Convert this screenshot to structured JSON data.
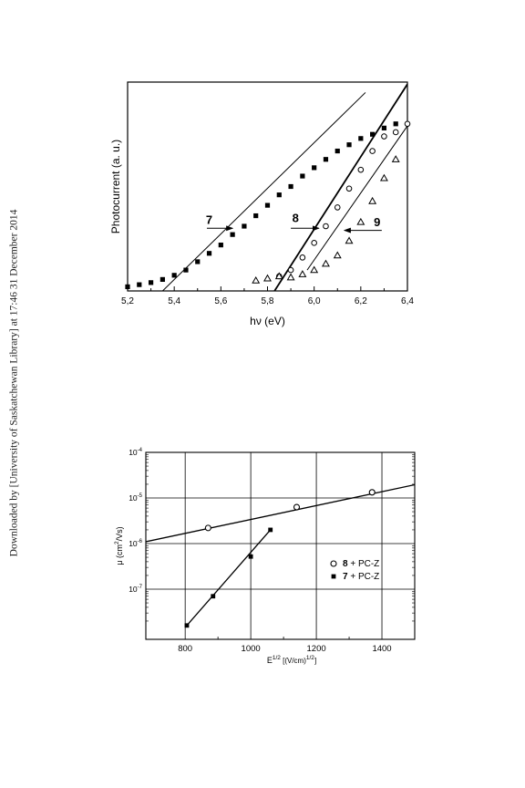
{
  "side_note": "Downloaded by [University of Saskatchewan Library] at 17:46 31 December 2014",
  "chart_data": [
    {
      "type": "scatter",
      "title": "",
      "xlabel": "hν  (eV)",
      "ylabel": "Photocurrent  (a. u.)",
      "xlim": [
        5.2,
        6.4
      ],
      "ylim": [
        0,
        1
      ],
      "y_ticks_shown": false,
      "grid": false,
      "x_ticks": [
        {
          "v": 5.2,
          "label": "5,2"
        },
        {
          "v": 5.4,
          "label": "5,4"
        },
        {
          "v": 5.6,
          "label": "5,6"
        },
        {
          "v": 5.8,
          "label": "5,8"
        },
        {
          "v": 6.0,
          "label": "6,0"
        },
        {
          "v": 6.2,
          "label": "6,2"
        },
        {
          "v": 6.4,
          "label": "6,4"
        }
      ],
      "series": [
        {
          "name": "7",
          "marker": "filled-square",
          "x": [
            5.2,
            5.25,
            5.3,
            5.35,
            5.4,
            5.45,
            5.5,
            5.55,
            5.6,
            5.65,
            5.7,
            5.75,
            5.8,
            5.85,
            5.9,
            5.95,
            6.0,
            6.05,
            6.1,
            6.15,
            6.2,
            6.25,
            6.3,
            6.35
          ],
          "y": [
            0.02,
            0.03,
            0.04,
            0.055,
            0.075,
            0.1,
            0.14,
            0.18,
            0.22,
            0.27,
            0.31,
            0.36,
            0.41,
            0.46,
            0.5,
            0.55,
            0.59,
            0.63,
            0.67,
            0.7,
            0.73,
            0.75,
            0.78,
            0.8
          ]
        },
        {
          "name": "8",
          "marker": "open-circle",
          "x": [
            5.85,
            5.9,
            5.95,
            6.0,
            6.05,
            6.1,
            6.15,
            6.2,
            6.25,
            6.3,
            6.35,
            6.4
          ],
          "y": [
            0.07,
            0.1,
            0.16,
            0.23,
            0.31,
            0.4,
            0.49,
            0.58,
            0.67,
            0.74,
            0.76,
            0.8
          ]
        },
        {
          "name": "9",
          "marker": "open-triangle",
          "x": [
            5.75,
            5.8,
            5.85,
            5.9,
            5.95,
            6.0,
            6.05,
            6.1,
            6.15,
            6.2,
            6.25,
            6.3,
            6.35
          ],
          "y": [
            0.05,
            0.06,
            0.07,
            0.065,
            0.08,
            0.1,
            0.13,
            0.17,
            0.24,
            0.33,
            0.43,
            0.54,
            0.63
          ]
        }
      ],
      "fit_lines": [
        {
          "series": "7",
          "from": [
            5.35,
            0
          ],
          "to": [
            6.22,
            0.95
          ],
          "weight": "thin"
        },
        {
          "series": "8",
          "from": [
            5.83,
            0
          ],
          "to": [
            6.4,
            0.99
          ],
          "weight": "thick"
        },
        {
          "series": "9",
          "from": [
            5.97,
            0.1
          ],
          "to": [
            6.4,
            0.79
          ],
          "weight": "thin"
        }
      ],
      "annotations": [
        {
          "text": "7",
          "x": 5.55,
          "y": 0.32,
          "arrow_to": [
            5.65,
            0.3
          ],
          "arrow_from": [
            5.54,
            0.3
          ]
        },
        {
          "text": "8",
          "x": 5.92,
          "y": 0.33,
          "arrow_to": [
            6.02,
            0.3
          ],
          "arrow_from": [
            5.9,
            0.3
          ]
        },
        {
          "text": "9",
          "x": 6.27,
          "y": 0.31,
          "arrow_to": [
            6.13,
            0.29
          ],
          "arrow_from": [
            6.29,
            0.29
          ]
        }
      ]
    },
    {
      "type": "line",
      "title": "",
      "xlabel_main": "E",
      "xlabel_sup": "1/2",
      "xlabel_unit": " [(V/cm)",
      "xlabel_unit_sup": "1/2",
      "xlabel_unit_end": "]",
      "ylabel_main": "μ (cm",
      "ylabel_sup": "2",
      "ylabel_end": "/Vs)",
      "xlim": [
        680,
        1500
      ],
      "ylim_log10": [
        -8.1,
        -4
      ],
      "y_scale": "log",
      "grid": true,
      "legend_position": "lower-right",
      "x_ticks": [
        {
          "v": 800,
          "label": "800"
        },
        {
          "v": 1000,
          "label": "1000"
        },
        {
          "v": 1200,
          "label": "1200"
        },
        {
          "v": 1400,
          "label": "1400"
        }
      ],
      "y_ticks": [
        {
          "exp": -4,
          "base": "10",
          "sup": "-4"
        },
        {
          "exp": -5,
          "base": "10",
          "sup": "-5"
        },
        {
          "exp": -6,
          "base": "10",
          "sup": "-6"
        },
        {
          "exp": -7,
          "base": "10",
          "sup": "-7"
        }
      ],
      "series": [
        {
          "name_bold": "8",
          "name_rest": " + PC-Z",
          "marker": "open-circle",
          "x": [
            870,
            1140,
            1370
          ],
          "y": [
            2.2e-06,
            6.3e-06,
            1.33e-05
          ]
        },
        {
          "name_bold": "7",
          "name_rest": " + PC-Z",
          "marker": "filled-square",
          "x": [
            805,
            885,
            1000,
            1060
          ],
          "y": [
            1.6e-08,
            7e-08,
            5.2e-07,
            2e-06
          ]
        }
      ],
      "fit_lines": [
        {
          "series": "8",
          "from": [
            680,
            1.1e-06
          ],
          "to": [
            1500,
            1.95e-05
          ]
        },
        {
          "series": "7",
          "from": [
            805,
            1.6e-08
          ],
          "to": [
            1060,
            2e-06
          ]
        }
      ]
    }
  ]
}
